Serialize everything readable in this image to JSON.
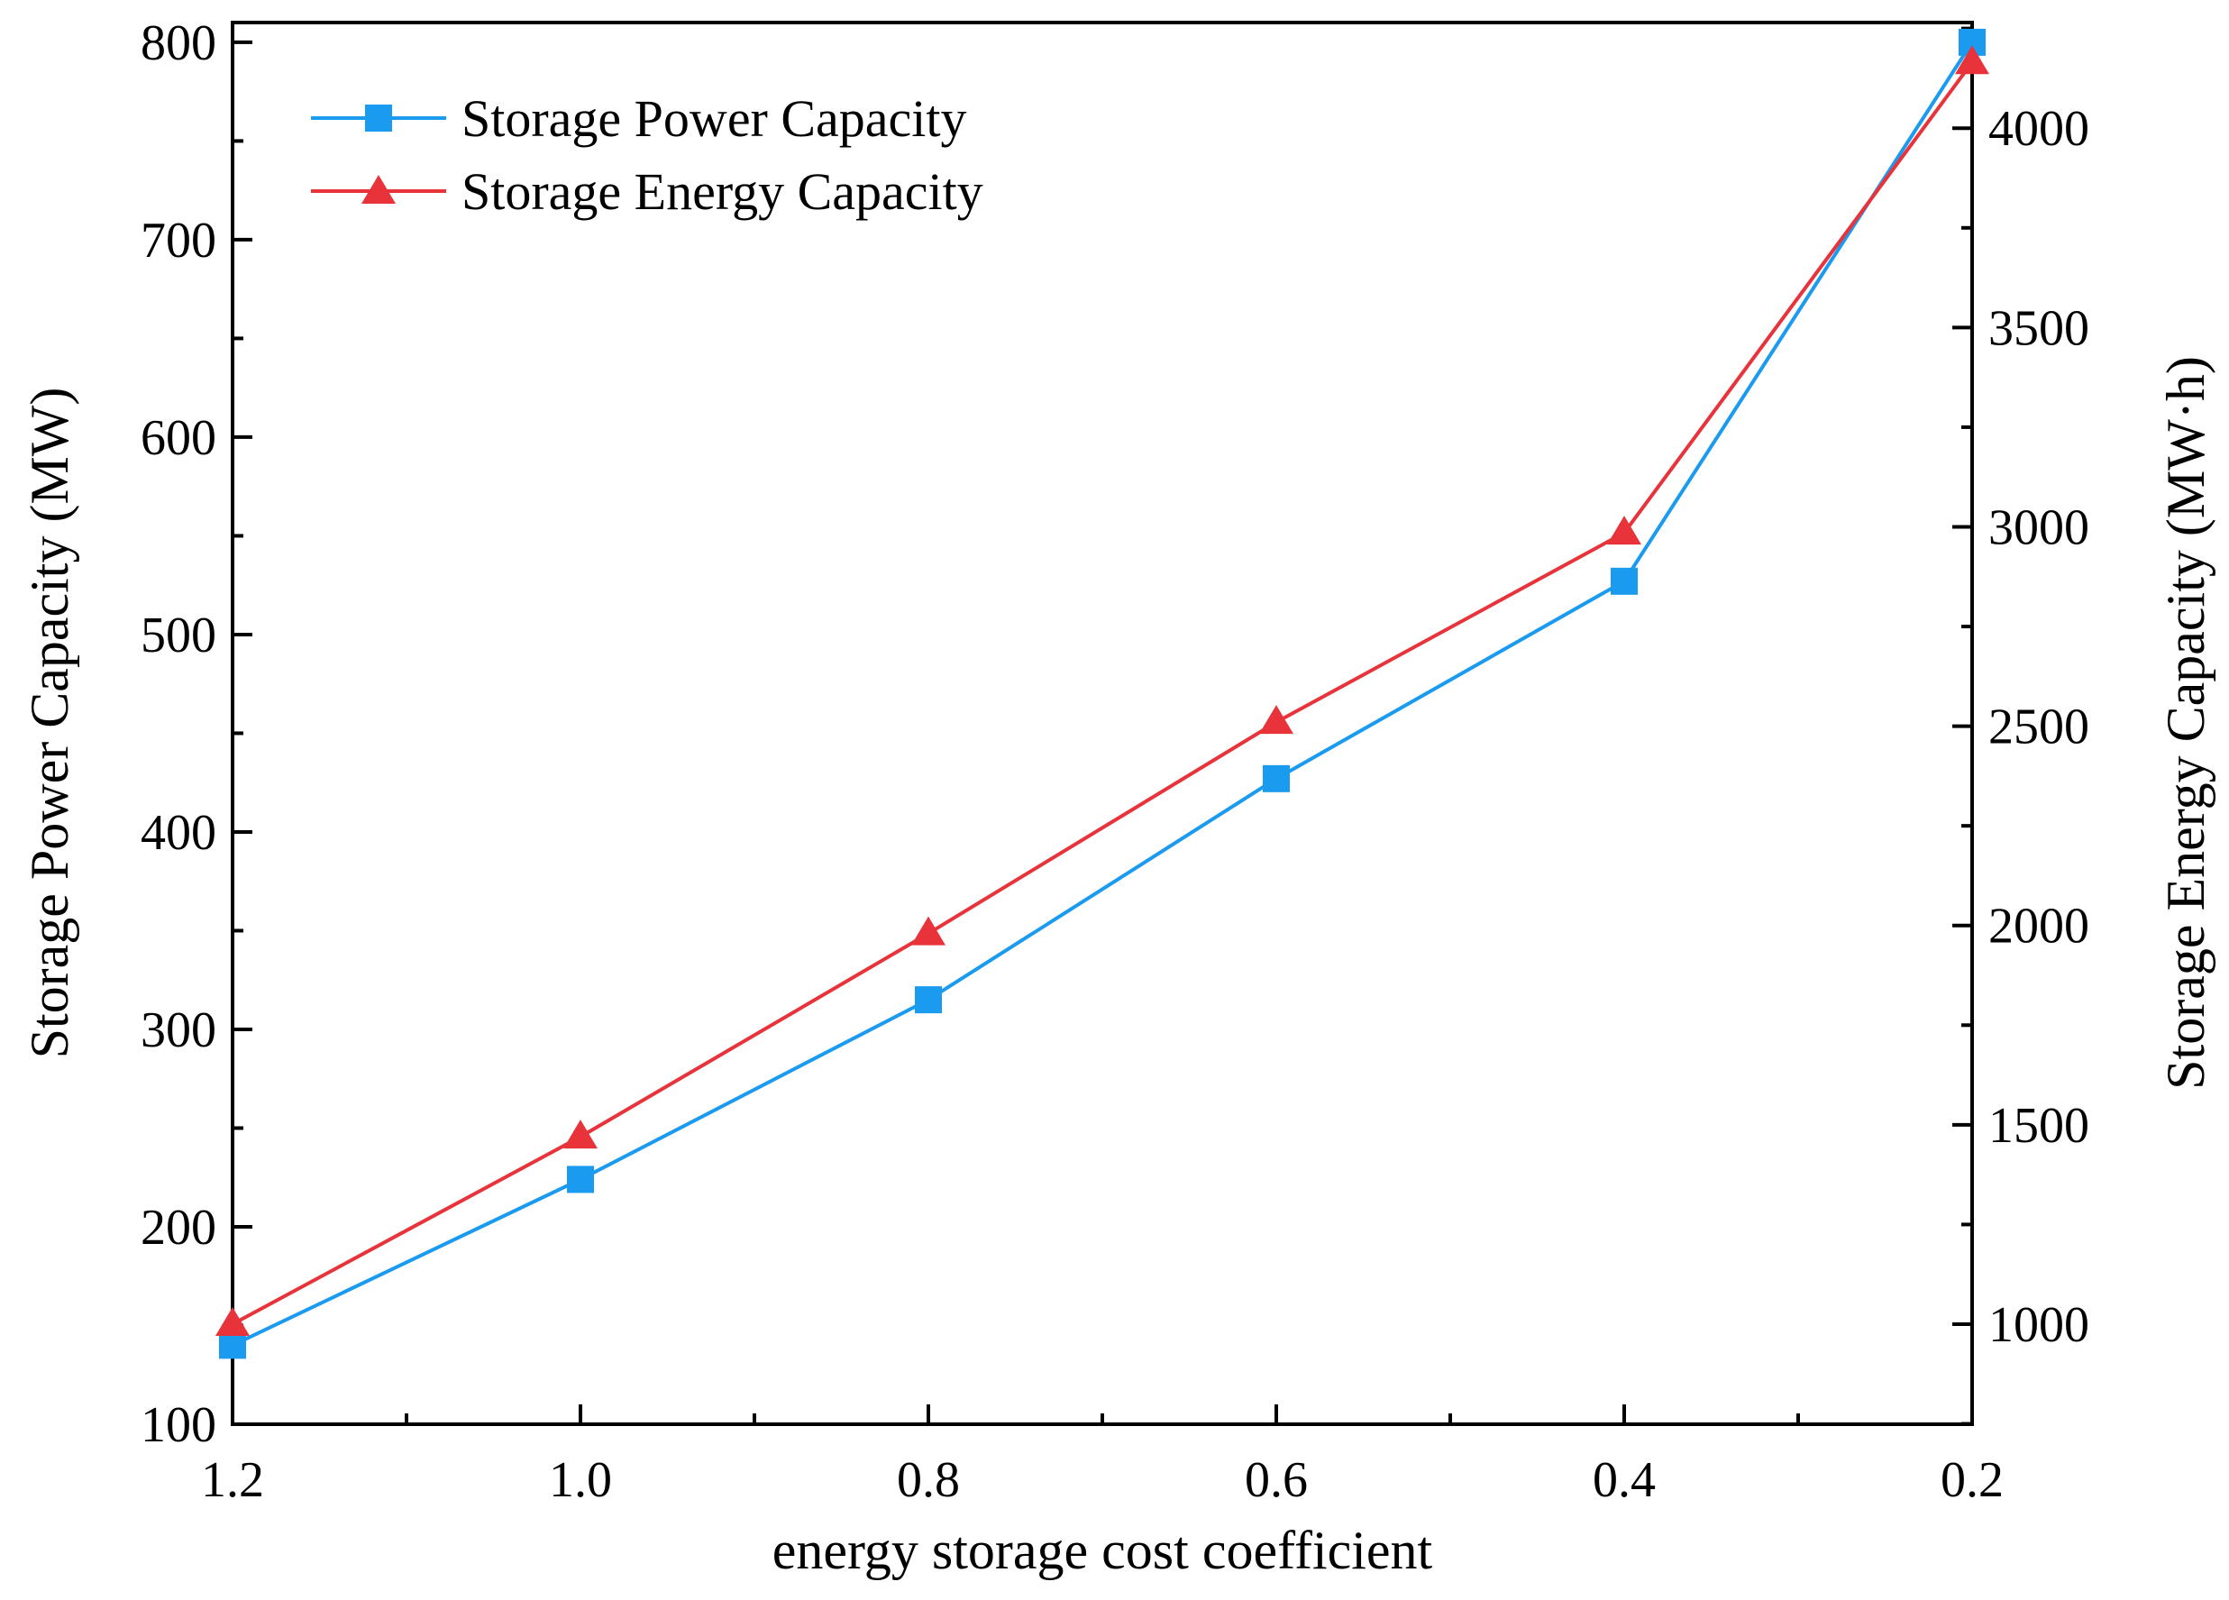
{
  "chart_data": {
    "type": "line",
    "title": "",
    "xlabel": "energy storage cost coefficient",
    "ylabel": "Storage Power Capacity (MW)",
    "y2label": "Storage Energy Capacity (MW·h)",
    "x": [
      1.2,
      1.0,
      0.8,
      0.6,
      0.4,
      0.2
    ],
    "xlim": [
      1.2,
      0.2
    ],
    "x_reversed": true,
    "x_ticks": [
      "1.2",
      "1.0",
      "0.8",
      "0.6",
      "0.4",
      "0.2"
    ],
    "ylim": [
      100,
      810
    ],
    "y_ticks": [
      "100",
      "200",
      "300",
      "400",
      "500",
      "600",
      "700",
      "800"
    ],
    "y2lim": [
      749,
      4265
    ],
    "y2_ticks": [
      "1000",
      "1500",
      "2000",
      "2500",
      "3000",
      "3500",
      "4000"
    ],
    "grid": false,
    "legend_position": "top-left",
    "series": [
      {
        "name": "Storage Power Capacity",
        "axis": "left",
        "marker": "square",
        "color": "#1a9bf0",
        "values": [
          140,
          224,
          315,
          427,
          527,
          800
        ]
      },
      {
        "name": "Storage Energy Capacity",
        "axis": "right",
        "marker": "triangle",
        "color": "#e8333a",
        "values": [
          1000,
          1470,
          1980,
          2510,
          2985,
          4165
        ]
      }
    ]
  }
}
